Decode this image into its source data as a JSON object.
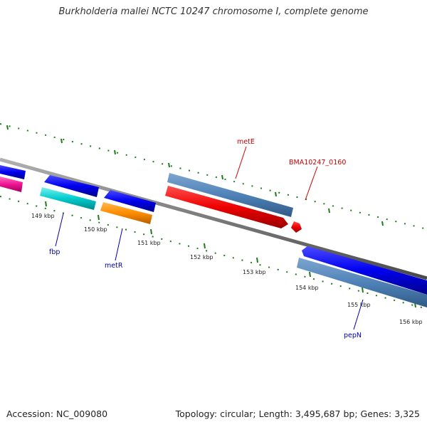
{
  "title": "Burkholderia mallei NCTC 10247 chromosome I, complete genome",
  "footer": {
    "accession": "Accession: NC_009080",
    "stats": "Topology: circular; Length: 3,495,687 bp; Genes: 3,325"
  },
  "colors": {
    "backbone": "#808080",
    "tick": "#1e7a1e",
    "label_red": "#cc0000",
    "label_blue": "#0000aa"
  },
  "ticks": [
    "149 kbp",
    "150 kbp",
    "151 kbp",
    "152 kbp",
    "153 kbp",
    "154 kbp",
    "155 kbp",
    "156 kbp"
  ],
  "gene_labels": {
    "metE": "metE",
    "bma": "BMA10247_0160",
    "fbp": "fbp",
    "metR": "metR",
    "pepN": "pepN"
  }
}
